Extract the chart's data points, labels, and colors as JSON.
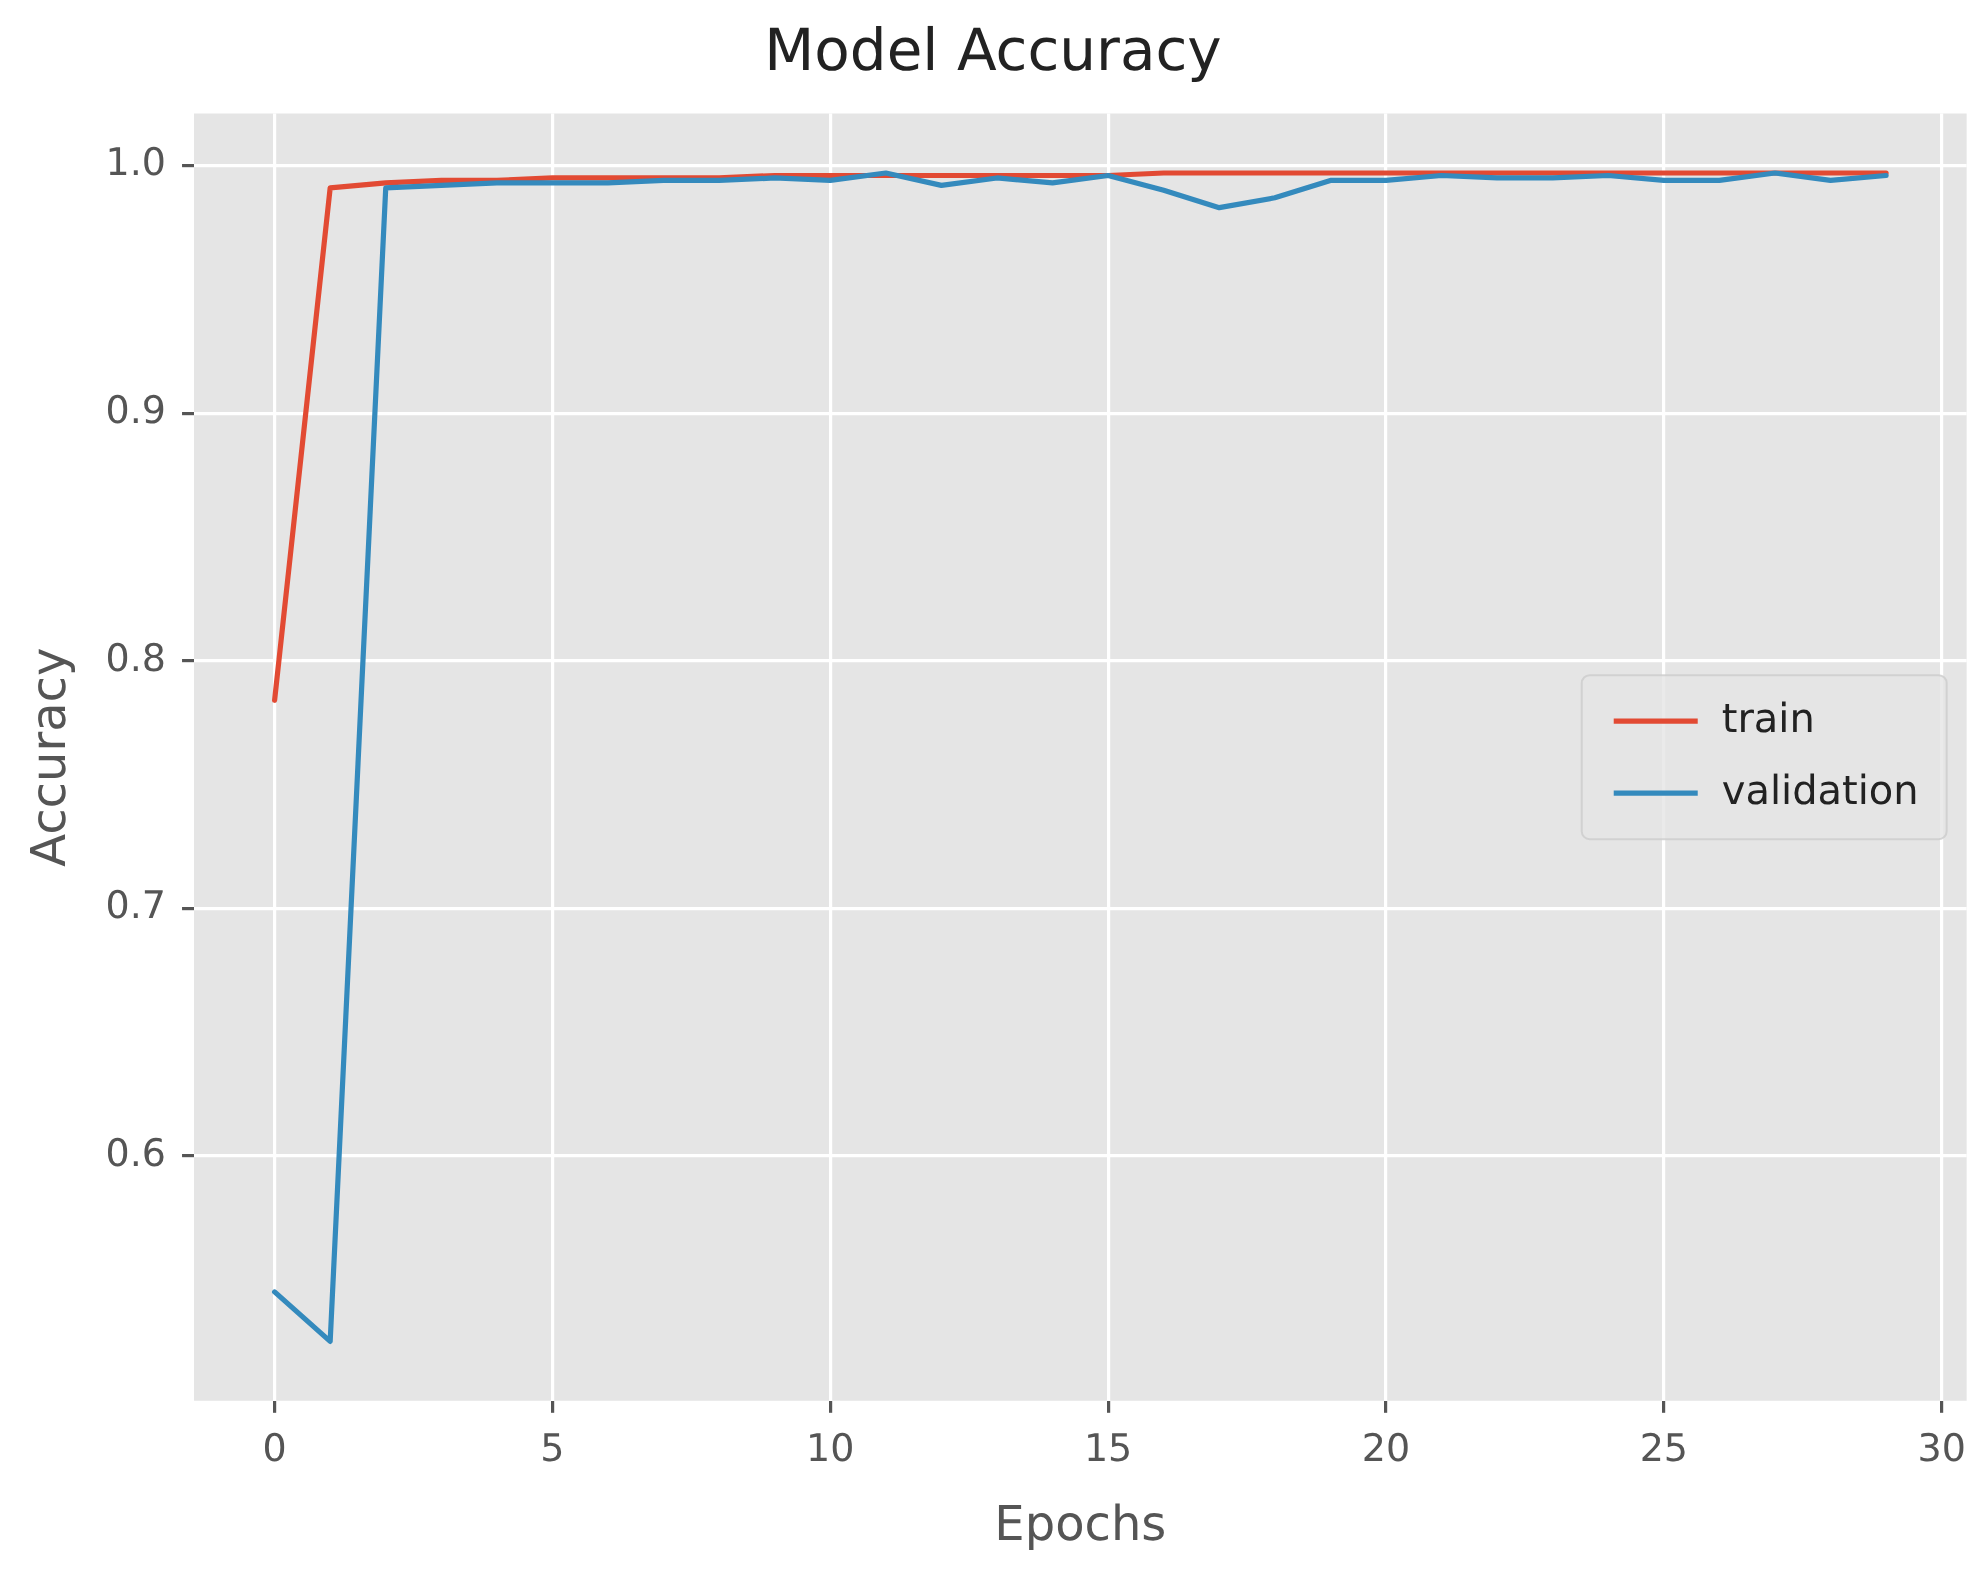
{
  "chart_data": {
    "type": "line",
    "title": "Model Accuracy",
    "xlabel": "Epochs",
    "ylabel": "Accuracy",
    "x": [
      0,
      1,
      2,
      3,
      4,
      5,
      6,
      7,
      8,
      9,
      10,
      11,
      12,
      13,
      14,
      15,
      16,
      17,
      18,
      19,
      20,
      21,
      22,
      23,
      24,
      25,
      26,
      27,
      28,
      29
    ],
    "series": [
      {
        "name": "train",
        "color": "#e24a33",
        "values": [
          0.784,
          0.991,
          0.993,
          0.994,
          0.994,
          0.995,
          0.995,
          0.995,
          0.995,
          0.996,
          0.996,
          0.996,
          0.996,
          0.996,
          0.996,
          0.996,
          0.997,
          0.997,
          0.997,
          0.997,
          0.997,
          0.997,
          0.997,
          0.997,
          0.997,
          0.997,
          0.997,
          0.997,
          0.997,
          0.997
        ]
      },
      {
        "name": "validation",
        "color": "#348abd",
        "values": [
          0.545,
          0.525,
          0.991,
          0.992,
          0.993,
          0.993,
          0.993,
          0.994,
          0.994,
          0.995,
          0.994,
          0.997,
          0.992,
          0.995,
          0.993,
          0.996,
          0.99,
          0.983,
          0.987,
          0.994,
          0.994,
          0.996,
          0.995,
          0.995,
          0.996,
          0.994,
          0.994,
          0.997,
          0.994,
          0.996
        ]
      }
    ],
    "xlim": [
      -1.45,
      30.45
    ],
    "xticks": [
      0,
      5,
      10,
      15,
      20,
      25,
      30
    ],
    "ylim": [
      0.501,
      1.021
    ],
    "yticks": [
      0.6,
      0.7,
      0.8,
      0.9,
      {
        "value": 1.0,
        "label": "1.0"
      }
    ],
    "grid": true,
    "legend": "right",
    "marker": "none",
    "line_style": "solid"
  }
}
